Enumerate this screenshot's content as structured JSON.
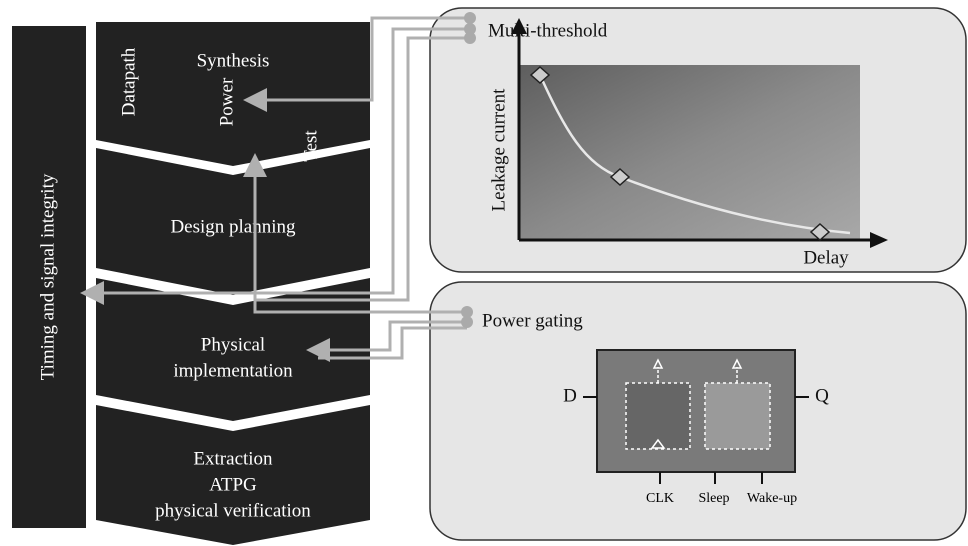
{
  "sidebar": {
    "label": "Timing and signal integrity"
  },
  "flow": {
    "synthesis": {
      "title": "Synthesis",
      "tags": [
        "Datapath",
        "Power",
        "Test"
      ]
    },
    "design_planning": {
      "title": "Design planning"
    },
    "physical_implementation": {
      "lines": [
        "Physical",
        "implementation"
      ]
    },
    "signoff": {
      "lines": [
        "Extraction",
        "ATPG",
        "physical verification"
      ]
    }
  },
  "multi_threshold": {
    "title": "Multi-threshold",
    "y_label": "Leakage current",
    "x_label": "Delay"
  },
  "power_gating": {
    "title": "Power gating",
    "pins": {
      "d": "D",
      "q": "Q",
      "clk": "CLK",
      "sleep": "Sleep",
      "wake": "Wake-up"
    }
  }
}
